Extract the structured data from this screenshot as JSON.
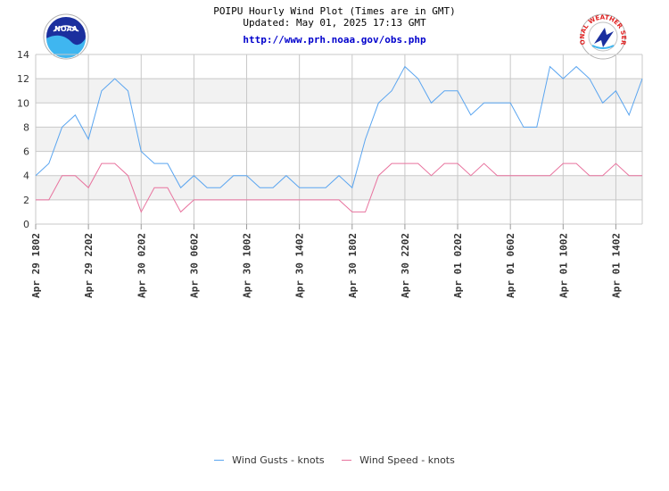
{
  "header": {
    "title": "POIPU Hourly Wind Plot (Times are in GMT)",
    "updated": "Updated: May 01, 2025 17:13 GMT",
    "url": "http://www.prh.noaa.gov/obs.php",
    "logo_left_text": "NOAA",
    "logo_right_text": "NATIONAL WEATHER SERVICE"
  },
  "colors": {
    "gust": "#5aa5f0",
    "speed": "#e8739e",
    "band": "#f2f2f2",
    "grid": "#c8c8c8"
  },
  "chart_data": {
    "type": "line",
    "xlabel": "",
    "ylabel": "",
    "ylim": [
      0,
      14
    ],
    "yticks": [
      0,
      2,
      4,
      6,
      8,
      10,
      12,
      14
    ],
    "xtick_labels": [
      "Apr 29 1802",
      "Apr 29 2202",
      "Apr 30 0202",
      "Apr 30 0602",
      "Apr 30 1002",
      "Apr 30 1402",
      "Apr 30 1802",
      "Apr 30 2202",
      "Apr 01 0202",
      "Apr 01 0602",
      "Apr 01 1002",
      "Apr 01 1402"
    ],
    "xtick_positions": [
      0,
      4,
      8,
      12,
      16,
      20,
      24,
      28,
      32,
      36,
      40,
      44
    ],
    "grid": true,
    "legend_position": "bottom",
    "series": [
      {
        "name": "Wind Gusts - knots",
        "values": [
          4,
          5,
          8,
          9,
          7,
          11,
          12,
          11,
          6,
          5,
          5,
          3,
          4,
          3,
          3,
          4,
          4,
          3,
          3,
          4,
          3,
          3,
          3,
          4,
          3,
          7,
          10,
          11,
          13,
          12,
          10,
          11,
          11,
          9,
          10,
          10,
          10,
          8,
          8,
          13,
          12,
          13,
          12,
          10,
          11,
          9,
          12
        ]
      },
      {
        "name": "Wind Speed - knots",
        "values": [
          2,
          2,
          4,
          4,
          3,
          5,
          5,
          4,
          1,
          3,
          3,
          1,
          2,
          2,
          2,
          2,
          2,
          2,
          2,
          2,
          2,
          2,
          2,
          2,
          1,
          1,
          4,
          5,
          5,
          5,
          4,
          5,
          5,
          4,
          5,
          4,
          4,
          4,
          4,
          4,
          5,
          5,
          4,
          4,
          5,
          4,
          4
        ]
      }
    ]
  }
}
